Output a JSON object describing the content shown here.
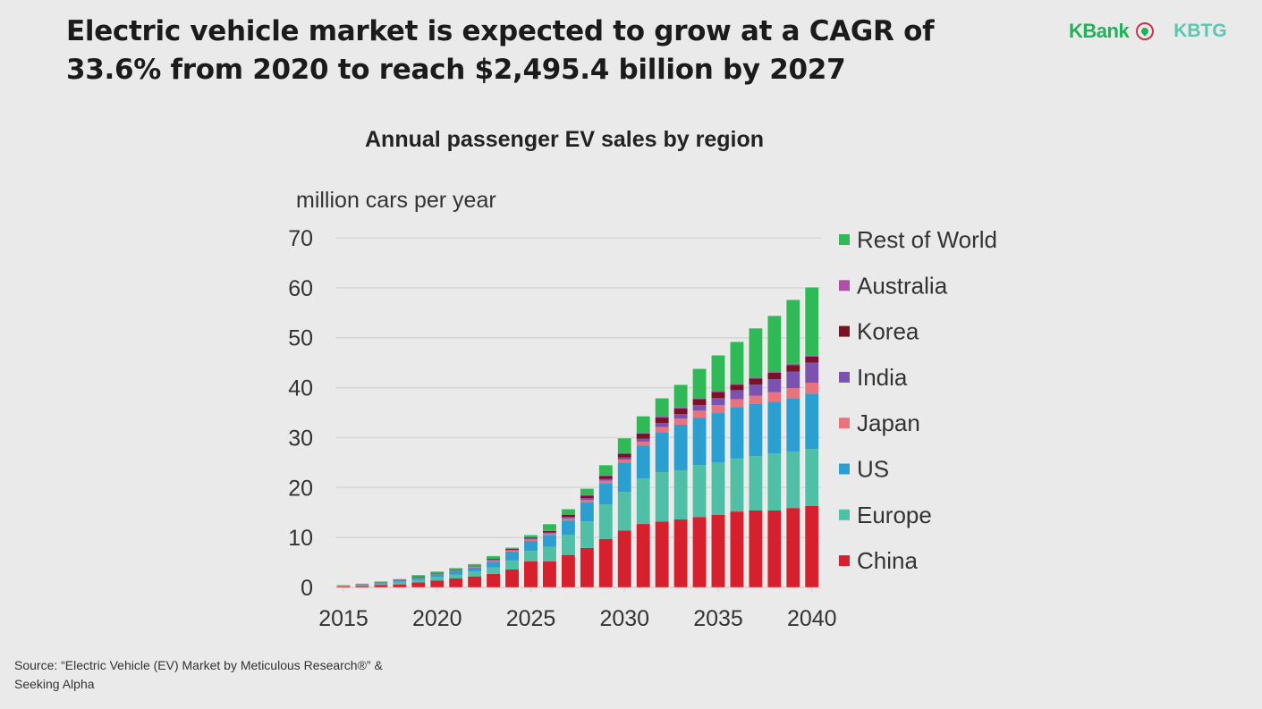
{
  "headline": {
    "line1": "Electric vehicle market is expected to grow at a CAGR of",
    "line2": "33.6% from 2020 to reach $2,495.4 billion by 2027"
  },
  "logos": {
    "kbank": "KBank",
    "kbtg": "KBTG"
  },
  "source": {
    "line1": "Source: “Electric Vehicle (EV) Market by Meticulous Research®” &",
    "line2": "Seeking Alpha"
  },
  "chart_data": {
    "type": "bar",
    "stacked": true,
    "title": "Annual passenger EV sales by region",
    "xlabel": "",
    "ylabel": "million cars per year",
    "ylim": [
      0,
      70
    ],
    "yticks": [
      0,
      10,
      20,
      30,
      40,
      50,
      60,
      70
    ],
    "xtick_labels": [
      "2015",
      "2020",
      "2025",
      "2030",
      "2035",
      "2040"
    ],
    "grid": true,
    "legend_position": "right",
    "categories": [
      "2015",
      "2016",
      "2017",
      "2018",
      "2019",
      "2020",
      "2021",
      "2022",
      "2023",
      "2024",
      "2025",
      "2026",
      "2027",
      "2028",
      "2029",
      "2030",
      "2031",
      "2032",
      "2033",
      "2034",
      "2035",
      "2036",
      "2037",
      "2038",
      "2039",
      "2040"
    ],
    "series": [
      {
        "name": "China",
        "color": "#d7202e",
        "values": [
          0.2,
          0.3,
          0.5,
          0.6,
          1.0,
          1.4,
          1.8,
          2.2,
          2.7,
          3.6,
          5.2,
          5.2,
          6.5,
          7.9,
          9.7,
          11.4,
          12.7,
          13.2,
          13.6,
          14.1,
          14.5,
          15.2,
          15.4,
          15.4,
          15.9,
          16.3
        ]
      },
      {
        "name": "Europe",
        "color": "#4fbfa5",
        "values": [
          0.1,
          0.2,
          0.3,
          0.5,
          0.5,
          0.7,
          0.8,
          1.0,
          1.3,
          1.8,
          2.1,
          2.9,
          4.0,
          5.3,
          6.9,
          7.7,
          9.1,
          9.9,
          9.8,
          10.4,
          10.5,
          10.6,
          10.9,
          11.4,
          11.3,
          11.4
        ]
      },
      {
        "name": "US",
        "color": "#2a9fd0",
        "values": [
          0.1,
          0.2,
          0.2,
          0.4,
          0.4,
          0.5,
          0.7,
          0.8,
          1.1,
          1.8,
          2.0,
          2.4,
          2.9,
          3.8,
          4.3,
          5.9,
          6.6,
          8.0,
          9.2,
          9.5,
          9.9,
          10.3,
          10.4,
          10.4,
          10.7,
          11.1
        ]
      },
      {
        "name": "Japan",
        "color": "#e8737e",
        "values": [
          0.05,
          0.1,
          0.1,
          0.1,
          0.1,
          0.1,
          0.1,
          0.2,
          0.3,
          0.2,
          0.3,
          0.3,
          0.4,
          0.5,
          0.5,
          0.6,
          0.8,
          1.0,
          1.2,
          1.4,
          1.6,
          1.6,
          1.7,
          1.9,
          2.0,
          2.2
        ]
      },
      {
        "name": "India",
        "color": "#7b52b0",
        "values": [
          0.0,
          0.0,
          0.0,
          0.0,
          0.0,
          0.0,
          0.05,
          0.05,
          0.1,
          0.1,
          0.2,
          0.2,
          0.3,
          0.4,
          0.3,
          0.4,
          0.6,
          0.8,
          0.9,
          1.1,
          1.4,
          1.8,
          2.2,
          2.6,
          3.3,
          4.0
        ]
      },
      {
        "name": "Korea",
        "color": "#7a1226",
        "values": [
          0.0,
          0.0,
          0.05,
          0.05,
          0.05,
          0.1,
          0.1,
          0.1,
          0.2,
          0.2,
          0.2,
          0.3,
          0.4,
          0.5,
          0.6,
          0.8,
          1.0,
          1.1,
          1.1,
          1.2,
          1.2,
          1.1,
          1.2,
          1.3,
          1.3,
          1.2
        ]
      },
      {
        "name": "Australia",
        "color": "#b04fa8",
        "values": [
          0.0,
          0.0,
          0.0,
          0.0,
          0.0,
          0.0,
          0.0,
          0.0,
          0.0,
          0.05,
          0.05,
          0.1,
          0.1,
          0.1,
          0.1,
          0.1,
          0.1,
          0.2,
          0.2,
          0.2,
          0.2,
          0.2,
          0.2,
          0.3,
          0.3,
          0.3
        ]
      },
      {
        "name": "Rest of World",
        "color": "#2fba57",
        "values": [
          0.05,
          0.0,
          0.05,
          0.05,
          0.45,
          0.4,
          0.35,
          0.35,
          0.6,
          0.25,
          0.45,
          1.3,
          1.1,
          1.3,
          2.1,
          3.0,
          3.4,
          3.7,
          4.6,
          5.9,
          7.2,
          8.4,
          9.9,
          11.1,
          12.8,
          13.6
        ]
      }
    ],
    "legend_order": [
      "Rest of World",
      "Australia",
      "Korea",
      "India",
      "Japan",
      "US",
      "Europe",
      "China"
    ]
  }
}
